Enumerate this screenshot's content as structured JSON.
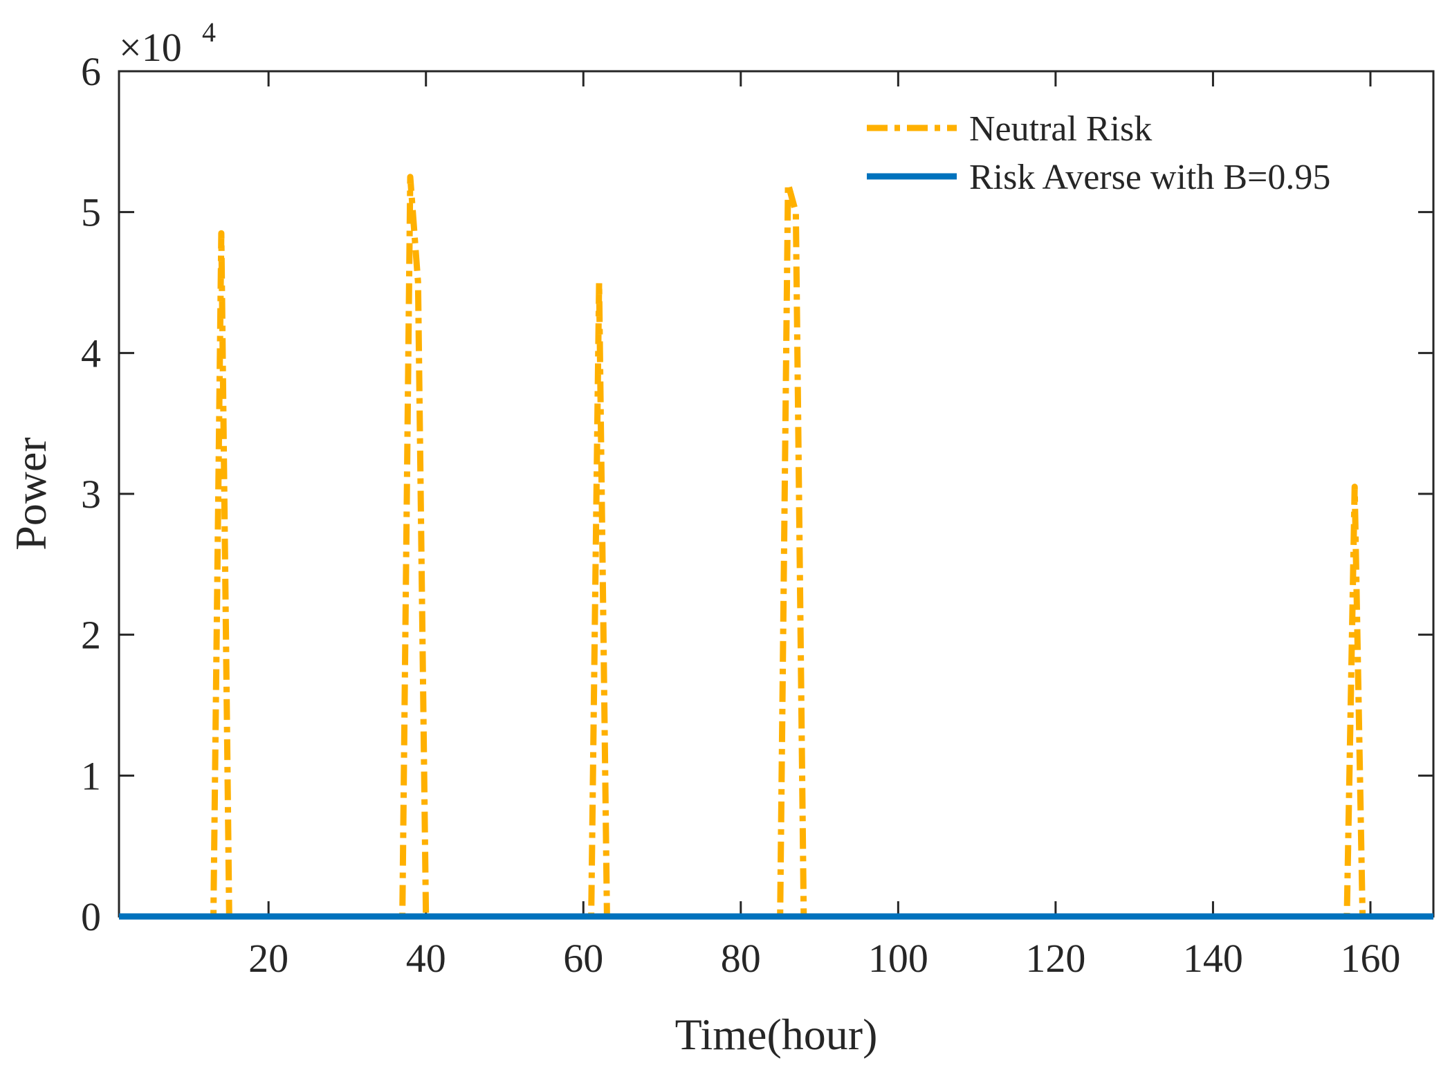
{
  "chart_data": {
    "type": "line",
    "title": "",
    "xlabel": "Time(hour)",
    "ylabel": "Power",
    "y_exponent_label": "×10",
    "y_exponent_power": "4",
    "xlim": [
      1,
      168
    ],
    "ylim": [
      0,
      60000
    ],
    "x_ticks": [
      20,
      40,
      60,
      80,
      100,
      120,
      140,
      160
    ],
    "x_tick_labels": [
      "20",
      "40",
      "60",
      "80",
      "100",
      "120",
      "140",
      "160"
    ],
    "y_ticks": [
      0,
      10000,
      20000,
      30000,
      40000,
      50000,
      60000
    ],
    "y_tick_labels": [
      "0",
      "1",
      "2",
      "3",
      "4",
      "5",
      "6"
    ],
    "grid": false,
    "legend_position": "top-right",
    "series": [
      {
        "name": "Neutral Risk",
        "color": "#FFB000",
        "style": "dash-dot",
        "points": [
          [
            1,
            0
          ],
          [
            12,
            0
          ],
          [
            13,
            0
          ],
          [
            14,
            48500
          ],
          [
            15,
            0
          ],
          [
            36,
            0
          ],
          [
            37,
            0
          ],
          [
            38,
            52500
          ],
          [
            39,
            45000
          ],
          [
            40,
            0
          ],
          [
            60,
            0
          ],
          [
            61,
            0
          ],
          [
            62,
            45000
          ],
          [
            63,
            0
          ],
          [
            84,
            0
          ],
          [
            85,
            0
          ],
          [
            86,
            52000
          ],
          [
            87,
            50000
          ],
          [
            88,
            0
          ],
          [
            156,
            0
          ],
          [
            157,
            0
          ],
          [
            158,
            30500
          ],
          [
            159,
            0
          ],
          [
            168,
            0
          ]
        ]
      },
      {
        "name": "Risk Averse with B=0.95",
        "color": "#0072BD",
        "style": "solid",
        "points": [
          [
            1,
            0
          ],
          [
            168,
            0
          ]
        ]
      }
    ]
  }
}
